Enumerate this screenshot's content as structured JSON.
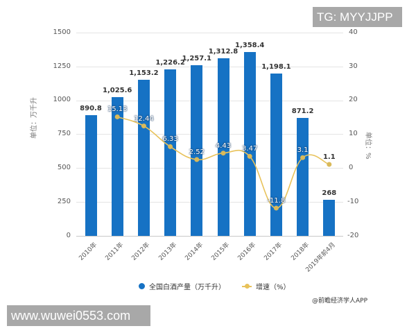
{
  "overlay": {
    "top_right": "TG: MYYJJPP",
    "bottom_left": "www.wuwei0553.com"
  },
  "credit": "@前瞻经济学人APP",
  "chart_data": {
    "type": "bar+line",
    "title": "",
    "categories": [
      "2010年",
      "2011年",
      "2012年",
      "2013年",
      "2014年",
      "2015年",
      "2016年",
      "2017年",
      "2018年",
      "2019年前4月"
    ],
    "series": [
      {
        "name": "全国白酒产量（万千升）",
        "type": "bar",
        "axis": "left",
        "color": "#1672c4",
        "values": [
          890.8,
          1025.6,
          1153.2,
          1226.2,
          1257.1,
          1312.8,
          1358.4,
          1198.1,
          871.2,
          268
        ],
        "labels": [
          "890.8",
          "1,025.6",
          "1,153.2",
          "1,226.2",
          "1,257.1",
          "1,312.8",
          "1,358.4",
          "1,198.1",
          "871.2",
          "268"
        ]
      },
      {
        "name": "增速（%）",
        "type": "line",
        "axis": "right",
        "color": "#e8c25a",
        "values": [
          null,
          15.13,
          12.44,
          6.33,
          2.52,
          4.43,
          3.47,
          -11.8,
          3.1,
          1.1
        ],
        "labels": [
          "",
          "15.13",
          "12.44",
          "6.33",
          "2.52",
          "4.43",
          "3.47",
          "-11.8",
          "3.1",
          "1.1"
        ]
      }
    ],
    "ylabel_left": "单位：万千升",
    "ylabel_right": "单位：%",
    "ylim_left": [
      0,
      1500
    ],
    "ylim_right": [
      -20,
      40
    ],
    "yticks_left": [
      "1500",
      "1250",
      "1000",
      "750",
      "500",
      "250",
      "0"
    ],
    "yticks_right": [
      "40",
      "30",
      "20",
      "10",
      "0",
      "-10",
      "-20"
    ],
    "grid": true,
    "legend_position": "bottom",
    "legend": [
      "全国白酒产量（万千升）",
      "增速（%）"
    ]
  }
}
